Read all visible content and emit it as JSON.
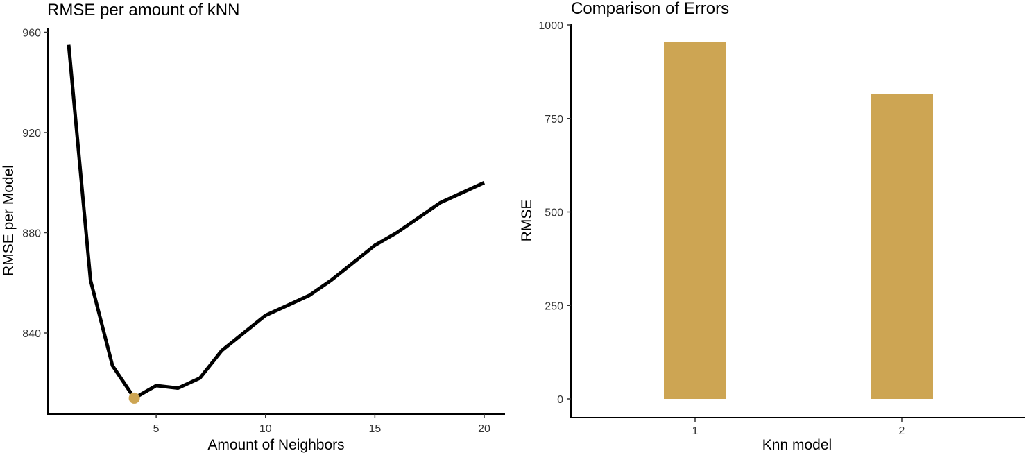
{
  "chart_data": [
    {
      "type": "line",
      "title": "RMSE per amount of kNN",
      "xlabel": "Amount of Neighbors",
      "ylabel": "RMSE per Model",
      "xlim": [
        0.5,
        21.0
      ],
      "ylim": [
        810,
        960
      ],
      "xticks": [
        5,
        10,
        15,
        20
      ],
      "yticks": [
        840,
        880,
        920,
        960
      ],
      "x": [
        1,
        2,
        3,
        4,
        5,
        6,
        7,
        8,
        9,
        10,
        11,
        12,
        13,
        14,
        15,
        16,
        17,
        18,
        19,
        20
      ],
      "y": [
        955,
        861,
        827,
        814,
        819,
        818,
        822,
        833,
        840,
        847,
        851,
        855,
        861,
        868,
        875,
        880,
        886,
        892,
        896,
        900
      ],
      "line_color": "#000000",
      "highlight": {
        "x": 4,
        "y": 814,
        "color": "#CDA553"
      },
      "grid": false
    },
    {
      "type": "bar",
      "title": "Comparison of Errors",
      "xlabel": "Knn model",
      "ylabel": "RMSE",
      "categories": [
        "1",
        "2"
      ],
      "values": [
        955,
        816
      ],
      "ylim": [
        0,
        1000
      ],
      "yticks": [
        0,
        250,
        500,
        750,
        1000
      ],
      "bar_color": "#CDA553",
      "grid": false
    }
  ]
}
